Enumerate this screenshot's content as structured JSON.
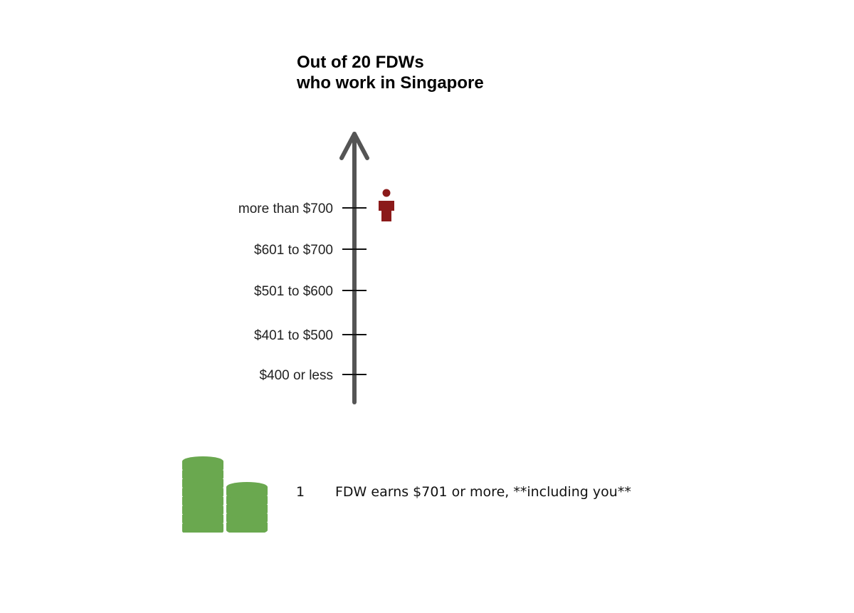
{
  "title": {
    "line1": "Out of 20 FDWs",
    "line2": "who work in Singapore"
  },
  "chart_data": {
    "type": "scatter",
    "categories": [
      "$400 or less",
      "$401 to $500",
      "$501 to $600",
      "$601 to $700",
      "more than $700"
    ],
    "values": [
      0,
      0,
      0,
      0,
      1
    ]
  },
  "colors": {
    "axis": "#555555",
    "tick": "#111111",
    "person": "#8b1a1a",
    "coins": "#6aa84f"
  },
  "icons": {
    "person": "person-icon",
    "coins": "coin-stack-icon"
  },
  "footer": {
    "count": "1",
    "text": "FDW earns $701 or more, **including you**"
  }
}
